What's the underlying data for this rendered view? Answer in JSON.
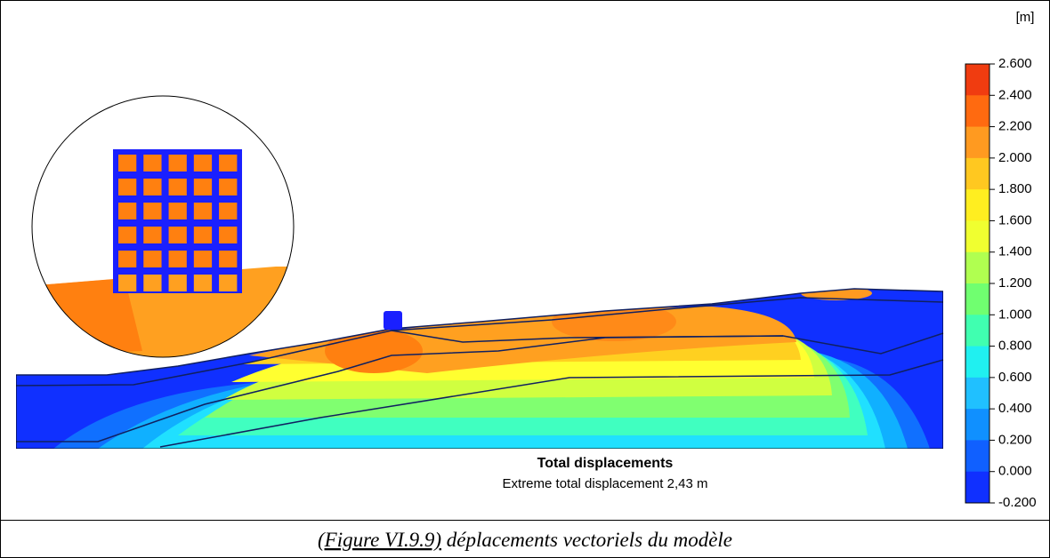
{
  "figure": {
    "unit": "[m]",
    "title": "Total displacements",
    "subtitle": "Extreme total displacement 2,43 m",
    "legend": {
      "labels": [
        "2.600",
        "2.400",
        "2.200",
        "2.000",
        "1.800",
        "1.600",
        "1.400",
        "1.200",
        "1.000",
        "0.800",
        "0.600",
        "0.400",
        "0.200",
        "0.000",
        "-0.200"
      ],
      "colors": [
        "#f03c10",
        "#ff6a10",
        "#ff9a20",
        "#ffc820",
        "#ffee20",
        "#f0ff30",
        "#b0ff50",
        "#70ff70",
        "#40ffb0",
        "#20f0f0",
        "#20c0ff",
        "#1090ff",
        "#1060ff",
        "#1030ff"
      ]
    }
  },
  "caption": {
    "reference": "(Figure VI.9.9)",
    "text": "déplacements vectoriels du modèle"
  }
}
